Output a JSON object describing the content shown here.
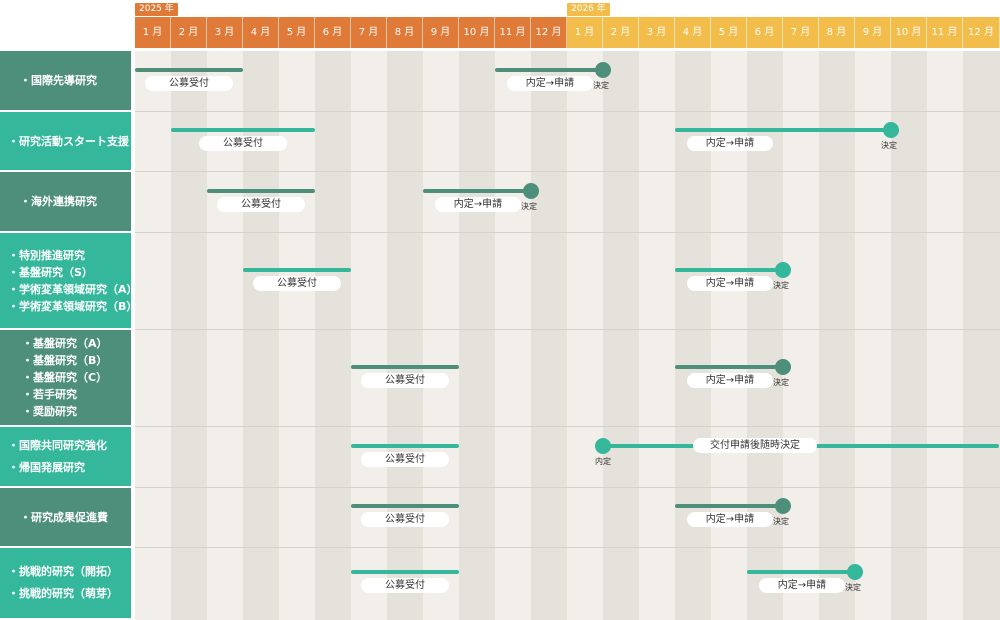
{
  "years": [
    {
      "label": "2025 年",
      "start_month": 0
    },
    {
      "label": "2026 年",
      "start_month": 12
    }
  ],
  "months": [
    "1 月",
    "2 月",
    "3 月",
    "4 月",
    "5 月",
    "6 月",
    "7 月",
    "8 月",
    "9 月",
    "10 月",
    "11 月",
    "12 月",
    "1 月",
    "2 月",
    "3 月",
    "4 月",
    "5 月",
    "6 月",
    "7 月",
    "8 月",
    "9 月",
    "10 月",
    "11 月",
    "12 月"
  ],
  "colors": {
    "header_2025": "#e07a38",
    "header_2026": "#f2bd4a",
    "label_dark": "#4e8f7c",
    "label_teal": "#34b79a",
    "bar_dark": "#4e8f7c",
    "bar_teal": "#34b79a",
    "col_light": "#f2efea",
    "col_dark": "#e5e1db"
  },
  "rows": [
    {
      "id": "kokusai-sendo",
      "color": "dark",
      "labels": [
        "・国際先導研究"
      ],
      "bars": [
        {
          "kind": "koubo",
          "start": 0,
          "end": 3,
          "label": "公募受付"
        },
        {
          "kind": "naitei",
          "start": 10,
          "end": 13,
          "label": "内定→申請",
          "end_label": "決定"
        }
      ]
    },
    {
      "id": "kenkyu-katsudo",
      "color": "teal",
      "labels": [
        "・研究活動スタート支援"
      ],
      "bars": [
        {
          "kind": "koubo",
          "start": 1,
          "end": 5,
          "label": "公募受付"
        },
        {
          "kind": "naitei",
          "start": 15,
          "end": 21,
          "label": "内定→申請",
          "end_label": "決定"
        }
      ]
    },
    {
      "id": "kaigai-renkei",
      "color": "dark",
      "labels": [
        "・海外連携研究"
      ],
      "bars": [
        {
          "kind": "koubo",
          "start": 2,
          "end": 5,
          "label": "公募受付"
        },
        {
          "kind": "naitei",
          "start": 8,
          "end": 11,
          "label": "内定→申請",
          "end_label": "決定"
        }
      ]
    },
    {
      "id": "tokubetsu-suishin",
      "color": "teal",
      "labels": [
        "・特別推進研究",
        "・基盤研究（S）",
        "・学術変革領域研究（A）",
        "・学術変革領域研究（B）"
      ],
      "bars": [
        {
          "kind": "koubo",
          "start": 3,
          "end": 6,
          "label": "公募受付"
        },
        {
          "kind": "naitei",
          "start": 15,
          "end": 18,
          "label": "内定→申請",
          "end_label": "決定"
        }
      ]
    },
    {
      "id": "kiban-abc",
      "color": "dark",
      "labels": [
        "・基盤研究（A）",
        "・基盤研究（B）",
        "・基盤研究（C）",
        "・若手研究",
        "・奨励研究"
      ],
      "bars": [
        {
          "kind": "koubo",
          "start": 6,
          "end": 9,
          "label": "公募受付"
        },
        {
          "kind": "naitei",
          "start": 15,
          "end": 18,
          "label": "内定→申請",
          "end_label": "決定"
        }
      ]
    },
    {
      "id": "kokusai-kyodo",
      "color": "teal",
      "labels": [
        "・国際共同研究強化",
        "・帰国発展研究"
      ],
      "bars": [
        {
          "kind": "koubo",
          "start": 6,
          "end": 9,
          "label": "公募受付"
        },
        {
          "kind": "rolling",
          "start": 13,
          "end": 24,
          "label": "交付申請後随時決定",
          "start_label": "内定"
        }
      ]
    },
    {
      "id": "seika-sokushin",
      "color": "dark",
      "labels": [
        "・研究成果促進費"
      ],
      "bars": [
        {
          "kind": "koubo",
          "start": 6,
          "end": 9,
          "label": "公募受付"
        },
        {
          "kind": "naitei",
          "start": 15,
          "end": 18,
          "label": "内定→申請",
          "end_label": "決定"
        }
      ]
    },
    {
      "id": "chosen",
      "color": "teal",
      "labels": [
        "・挑戦的研究（開拓）",
        "・挑戦的研究（萌芽）"
      ],
      "bars": [
        {
          "kind": "koubo",
          "start": 6,
          "end": 9,
          "label": "公募受付"
        },
        {
          "kind": "naitei",
          "start": 17,
          "end": 20,
          "label": "内定→申請",
          "end_label": "決定"
        }
      ]
    }
  ]
}
